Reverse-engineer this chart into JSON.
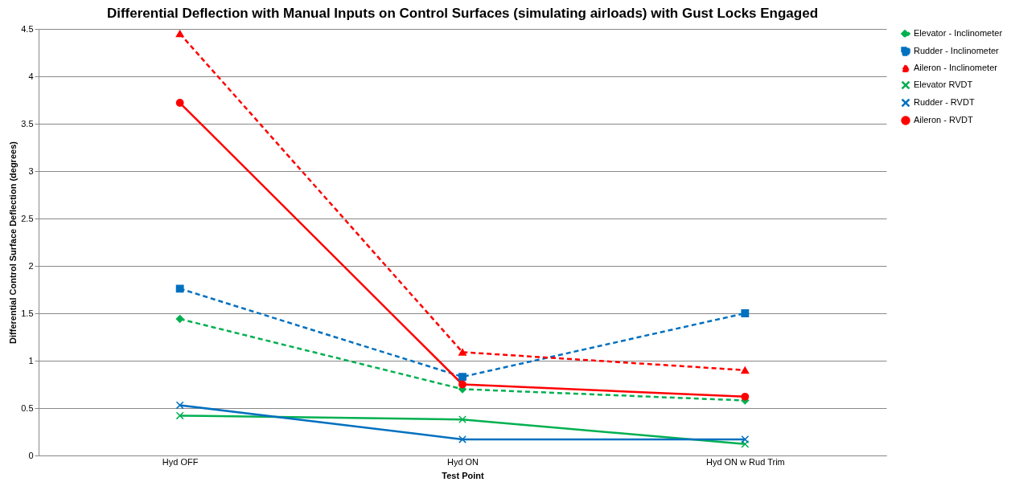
{
  "chart_data": {
    "type": "line",
    "title": "Differential Deflection with Manual Inputs on Control Surfaces (simulating airloads) with Gust Locks Engaged",
    "xlabel": "Test Point",
    "ylabel": "Differential Control Surface  Deflection (degrees)",
    "categories": [
      "Hyd OFF",
      "Hyd ON",
      "Hyd ON w Rud Trim"
    ],
    "ylim": [
      0,
      4.5
    ],
    "yticks": [
      0,
      0.5,
      1,
      1.5,
      2,
      2.5,
      3,
      3.5,
      4,
      4.5
    ],
    "grid": "y",
    "legend": "right",
    "series": [
      {
        "name": "Elevator - Inclinometer",
        "color": "#00b050",
        "line_style": "dashed",
        "marker": "diamond",
        "values": [
          1.44,
          0.7,
          0.58
        ]
      },
      {
        "name": "Rudder - Inclinometer",
        "color": "#0070c0",
        "line_style": "dashed",
        "marker": "square",
        "values": [
          1.76,
          0.83,
          1.5
        ]
      },
      {
        "name": "Aileron - Inclinometer",
        "color": "#ff0000",
        "line_style": "dashed",
        "marker": "triangle",
        "values": [
          4.45,
          1.09,
          0.9
        ]
      },
      {
        "name": "Elevator RVDT",
        "color": "#00b050",
        "line_style": "solid",
        "marker": "cross",
        "values": [
          0.42,
          0.38,
          0.12
        ]
      },
      {
        "name": "Rudder - RVDT",
        "color": "#0070c0",
        "line_style": "solid",
        "marker": "cross",
        "values": [
          0.53,
          0.17,
          0.17
        ]
      },
      {
        "name": "Aileron - RVDT",
        "color": "#ff0000",
        "line_style": "solid",
        "marker": "circle",
        "values": [
          3.72,
          0.75,
          0.62
        ]
      }
    ]
  }
}
